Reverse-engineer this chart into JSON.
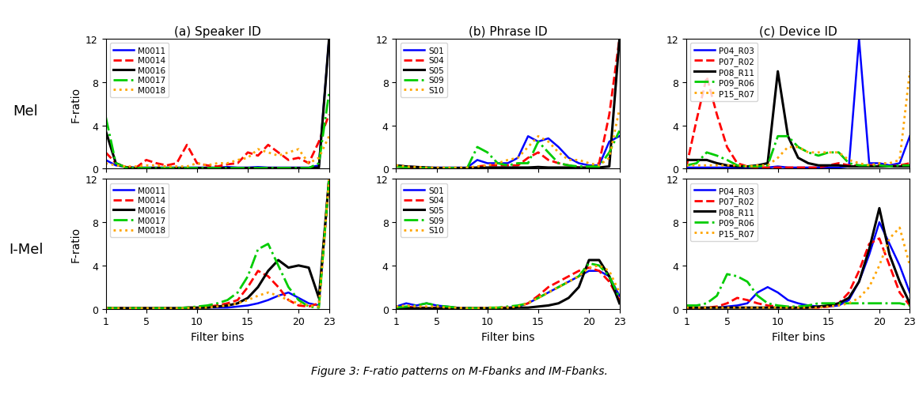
{
  "x": [
    1,
    2,
    3,
    4,
    5,
    6,
    7,
    8,
    9,
    10,
    11,
    12,
    13,
    14,
    15,
    16,
    17,
    18,
    19,
    20,
    21,
    22,
    23
  ],
  "titles_top": [
    "(a) Speaker ID",
    "(b) Phrase ID",
    "(c) Device ID"
  ],
  "row_labels": [
    "Mel",
    "I-Mel"
  ],
  "ylabel": "F-ratio",
  "xlabel": "Filter bins",
  "figure_caption": "Figure 3: F-ratio patterns on M-Fbanks and IM-Fbanks.",
  "ylim": [
    0,
    12
  ],
  "yticks": [
    0,
    4,
    8,
    12
  ],
  "xticks": [
    1,
    5,
    10,
    15,
    20,
    23
  ],
  "panels": {
    "speaker_mel": {
      "labels": [
        "M0011",
        "M0014",
        "M0016",
        "M0017",
        "M0018"
      ],
      "colors": [
        "blue",
        "red",
        "black",
        "#00cc00",
        "orange"
      ],
      "styles": [
        "-",
        "--",
        "-",
        "-.",
        ":"
      ],
      "linewidths": [
        1.8,
        2.0,
        2.2,
        2.0,
        2.0
      ],
      "data": [
        [
          0.8,
          0.3,
          0.15,
          0.1,
          0.1,
          0.1,
          0.1,
          0.1,
          0.1,
          0.1,
          0.1,
          0.1,
          0.15,
          0.1,
          0.1,
          0.15,
          0.1,
          0.1,
          0.1,
          0.1,
          0.1,
          0.3,
          12.0
        ],
        [
          1.5,
          0.5,
          0.15,
          0.1,
          0.8,
          0.5,
          0.3,
          0.5,
          2.2,
          0.5,
          0.3,
          0.2,
          0.4,
          0.5,
          1.5,
          1.2,
          2.2,
          1.5,
          0.8,
          1.0,
          0.5,
          2.5,
          5.0
        ],
        [
          3.5,
          0.5,
          0.1,
          0.05,
          0.05,
          0.05,
          0.05,
          0.05,
          0.05,
          0.05,
          0.05,
          0.05,
          0.05,
          0.05,
          0.05,
          0.05,
          0.05,
          0.05,
          0.05,
          0.05,
          0.05,
          0.1,
          12.0
        ],
        [
          4.8,
          0.5,
          0.1,
          0.05,
          0.05,
          0.05,
          0.05,
          0.05,
          0.05,
          0.05,
          0.05,
          0.05,
          0.05,
          0.05,
          0.05,
          0.05,
          0.05,
          0.05,
          0.05,
          0.05,
          0.05,
          0.5,
          7.0
        ],
        [
          0.5,
          0.3,
          0.2,
          0.2,
          0.3,
          0.3,
          0.2,
          0.2,
          0.2,
          0.5,
          0.3,
          0.5,
          0.5,
          0.8,
          1.0,
          1.8,
          1.5,
          1.2,
          1.5,
          1.8,
          0.5,
          1.0,
          3.0
        ]
      ]
    },
    "phrase_mel": {
      "labels": [
        "S01",
        "S04",
        "S05",
        "S09",
        "S10"
      ],
      "colors": [
        "blue",
        "red",
        "black",
        "#00cc00",
        "orange"
      ],
      "styles": [
        "-",
        "--",
        "-",
        "-.",
        ":"
      ],
      "linewidths": [
        1.8,
        2.0,
        2.2,
        2.0,
        2.0
      ],
      "data": [
        [
          0.3,
          0.2,
          0.15,
          0.1,
          0.1,
          0.1,
          0.1,
          0.1,
          0.8,
          0.5,
          0.5,
          0.5,
          1.0,
          3.0,
          2.5,
          2.8,
          2.0,
          1.0,
          0.5,
          0.3,
          0.3,
          2.5,
          3.0
        ],
        [
          0.2,
          0.1,
          0.1,
          0.05,
          0.05,
          0.05,
          0.05,
          0.05,
          0.2,
          0.3,
          0.3,
          0.3,
          0.3,
          1.0,
          1.5,
          0.8,
          0.5,
          0.3,
          0.1,
          0.1,
          0.5,
          5.0,
          12.0
        ],
        [
          0.3,
          0.2,
          0.15,
          0.1,
          0.05,
          0.05,
          0.05,
          0.05,
          0.1,
          0.1,
          0.1,
          0.1,
          0.1,
          0.1,
          0.15,
          0.1,
          0.1,
          0.1,
          0.1,
          0.1,
          0.1,
          0.2,
          12.0
        ],
        [
          0.2,
          0.1,
          0.05,
          0.05,
          0.05,
          0.05,
          0.05,
          0.05,
          2.0,
          1.5,
          0.5,
          0.3,
          0.5,
          0.5,
          2.5,
          1.5,
          0.5,
          0.3,
          0.2,
          0.2,
          0.2,
          1.5,
          3.5
        ],
        [
          0.3,
          0.2,
          0.15,
          0.1,
          0.1,
          0.1,
          0.1,
          0.1,
          0.2,
          0.3,
          0.5,
          0.8,
          1.0,
          2.0,
          3.0,
          2.5,
          1.5,
          0.8,
          0.8,
          0.5,
          0.3,
          1.0,
          5.5
        ]
      ]
    },
    "device_mel": {
      "labels": [
        "P04_R03",
        "P07_R02",
        "P08_R11",
        "P09_R06",
        "P15_R07"
      ],
      "colors": [
        "blue",
        "red",
        "black",
        "#00cc00",
        "orange"
      ],
      "styles": [
        "-",
        "--",
        "-",
        "-.",
        ":"
      ],
      "linewidths": [
        1.8,
        2.0,
        2.2,
        2.0,
        2.0
      ],
      "data": [
        [
          0.1,
          0.1,
          0.1,
          0.1,
          0.1,
          0.1,
          0.1,
          0.1,
          0.1,
          0.2,
          0.1,
          0.1,
          0.1,
          0.1,
          0.1,
          0.1,
          0.2,
          12.0,
          0.5,
          0.5,
          0.3,
          0.5,
          3.0
        ],
        [
          0.2,
          4.5,
          8.5,
          5.0,
          2.0,
          0.5,
          0.2,
          0.1,
          0.1,
          0.1,
          0.1,
          0.1,
          0.1,
          0.1,
          0.3,
          0.5,
          0.3,
          0.3,
          0.3,
          0.3,
          0.2,
          0.3,
          0.5
        ],
        [
          0.8,
          0.8,
          0.8,
          0.5,
          0.3,
          0.2,
          0.2,
          0.3,
          0.5,
          9.0,
          3.0,
          1.0,
          0.5,
          0.3,
          0.3,
          0.3,
          0.2,
          0.2,
          0.2,
          0.2,
          0.2,
          0.2,
          0.2
        ],
        [
          0.3,
          0.5,
          1.5,
          1.2,
          0.8,
          0.3,
          0.2,
          0.2,
          0.3,
          3.0,
          3.0,
          2.0,
          1.5,
          1.2,
          1.5,
          1.5,
          0.5,
          0.3,
          0.3,
          0.3,
          0.2,
          0.3,
          0.3
        ],
        [
          0.3,
          0.3,
          0.3,
          0.3,
          0.3,
          0.3,
          0.2,
          0.3,
          0.3,
          1.0,
          2.0,
          2.0,
          1.5,
          1.5,
          1.5,
          1.5,
          0.8,
          0.5,
          0.3,
          0.5,
          0.5,
          0.8,
          9.0
        ]
      ]
    },
    "speaker_imel": {
      "labels": [
        "M0011",
        "M0014",
        "M0016",
        "M0017",
        "M0018"
      ],
      "colors": [
        "blue",
        "red",
        "black",
        "#00cc00",
        "orange"
      ],
      "styles": [
        "-",
        "--",
        "-",
        "-.",
        ":"
      ],
      "linewidths": [
        1.8,
        2.0,
        2.2,
        2.0,
        2.0
      ],
      "data": [
        [
          0.05,
          0.05,
          0.05,
          0.05,
          0.05,
          0.05,
          0.05,
          0.05,
          0.05,
          0.1,
          0.1,
          0.1,
          0.1,
          0.2,
          0.3,
          0.5,
          0.8,
          1.2,
          1.5,
          1.0,
          0.5,
          0.3,
          12.0
        ],
        [
          0.05,
          0.05,
          0.05,
          0.05,
          0.05,
          0.05,
          0.05,
          0.05,
          0.1,
          0.1,
          0.2,
          0.3,
          0.5,
          0.8,
          2.0,
          3.5,
          3.0,
          2.0,
          0.8,
          0.3,
          0.2,
          0.5,
          12.0
        ],
        [
          0.05,
          0.05,
          0.05,
          0.05,
          0.05,
          0.05,
          0.05,
          0.05,
          0.1,
          0.1,
          0.1,
          0.2,
          0.3,
          0.5,
          1.0,
          2.0,
          3.5,
          4.5,
          3.8,
          4.0,
          3.8,
          1.0,
          12.0
        ],
        [
          0.05,
          0.05,
          0.05,
          0.05,
          0.05,
          0.05,
          0.05,
          0.05,
          0.1,
          0.2,
          0.3,
          0.5,
          0.8,
          1.5,
          3.0,
          5.5,
          6.0,
          4.0,
          2.0,
          0.8,
          0.2,
          0.1,
          12.0
        ],
        [
          0.05,
          0.05,
          0.05,
          0.05,
          0.05,
          0.05,
          0.05,
          0.05,
          0.05,
          0.1,
          0.1,
          0.2,
          0.3,
          0.5,
          0.8,
          1.2,
          1.5,
          1.2,
          0.8,
          0.5,
          0.3,
          0.2,
          12.0
        ]
      ]
    },
    "phrase_imel": {
      "labels": [
        "S01",
        "S04",
        "S05",
        "S09",
        "S10"
      ],
      "colors": [
        "blue",
        "red",
        "black",
        "#00cc00",
        "orange"
      ],
      "styles": [
        "-",
        "--",
        "-",
        "-.",
        ":"
      ],
      "linewidths": [
        1.8,
        2.0,
        2.2,
        2.0,
        2.0
      ],
      "data": [
        [
          0.2,
          0.5,
          0.3,
          0.5,
          0.3,
          0.2,
          0.1,
          0.05,
          0.05,
          0.05,
          0.1,
          0.1,
          0.2,
          0.5,
          1.0,
          1.5,
          2.0,
          2.5,
          3.0,
          3.5,
          3.5,
          3.0,
          1.2
        ],
        [
          0.1,
          0.2,
          0.1,
          0.1,
          0.1,
          0.1,
          0.05,
          0.05,
          0.05,
          0.05,
          0.1,
          0.1,
          0.2,
          0.5,
          1.2,
          2.0,
          2.5,
          3.0,
          3.5,
          3.8,
          3.5,
          2.5,
          0.8
        ],
        [
          0.05,
          0.05,
          0.05,
          0.05,
          0.05,
          0.05,
          0.05,
          0.05,
          0.05,
          0.05,
          0.05,
          0.05,
          0.1,
          0.1,
          0.2,
          0.3,
          0.5,
          1.0,
          2.0,
          4.5,
          4.5,
          3.0,
          0.5
        ],
        [
          0.1,
          0.2,
          0.3,
          0.5,
          0.3,
          0.2,
          0.1,
          0.05,
          0.05,
          0.1,
          0.1,
          0.2,
          0.3,
          0.5,
          1.0,
          1.5,
          2.0,
          2.5,
          3.0,
          4.2,
          4.0,
          3.0,
          1.0
        ],
        [
          0.2,
          0.3,
          0.2,
          0.2,
          0.2,
          0.1,
          0.1,
          0.05,
          0.05,
          0.1,
          0.1,
          0.1,
          0.2,
          0.5,
          1.0,
          1.5,
          2.0,
          2.5,
          3.0,
          3.8,
          4.0,
          3.5,
          1.5
        ]
      ]
    },
    "device_imel": {
      "labels": [
        "P04_R03",
        "P07_R02",
        "P08_R11",
        "P09_R06",
        "P15_R07"
      ],
      "colors": [
        "blue",
        "red",
        "black",
        "#00cc00",
        "orange"
      ],
      "styles": [
        "-",
        "--",
        "-",
        "-.",
        ":"
      ],
      "linewidths": [
        1.8,
        2.0,
        2.2,
        2.0,
        2.0
      ],
      "data": [
        [
          0.1,
          0.1,
          0.1,
          0.1,
          0.2,
          0.3,
          0.5,
          1.5,
          2.0,
          1.5,
          0.8,
          0.5,
          0.3,
          0.2,
          0.2,
          0.3,
          0.8,
          2.5,
          5.0,
          8.0,
          6.0,
          4.0,
          1.5
        ],
        [
          0.05,
          0.05,
          0.1,
          0.2,
          0.5,
          1.0,
          0.8,
          0.5,
          0.3,
          0.2,
          0.1,
          0.1,
          0.1,
          0.1,
          0.2,
          0.5,
          1.5,
          3.5,
          6.0,
          6.5,
          4.0,
          1.5,
          0.3
        ],
        [
          0.1,
          0.1,
          0.1,
          0.1,
          0.1,
          0.1,
          0.1,
          0.1,
          0.1,
          0.1,
          0.1,
          0.1,
          0.1,
          0.2,
          0.3,
          0.5,
          1.0,
          2.5,
          5.5,
          9.3,
          5.0,
          2.5,
          0.5
        ],
        [
          0.3,
          0.3,
          0.5,
          1.2,
          3.2,
          3.0,
          2.5,
          1.2,
          0.5,
          0.3,
          0.2,
          0.2,
          0.3,
          0.5,
          0.5,
          0.5,
          0.5,
          0.5,
          0.5,
          0.5,
          0.5,
          0.5,
          0.3
        ],
        [
          0.1,
          0.1,
          0.1,
          0.1,
          0.1,
          0.1,
          0.1,
          0.1,
          0.1,
          0.1,
          0.1,
          0.1,
          0.1,
          0.1,
          0.2,
          0.3,
          0.5,
          1.0,
          2.0,
          4.0,
          6.5,
          7.5,
          4.0
        ]
      ]
    }
  }
}
